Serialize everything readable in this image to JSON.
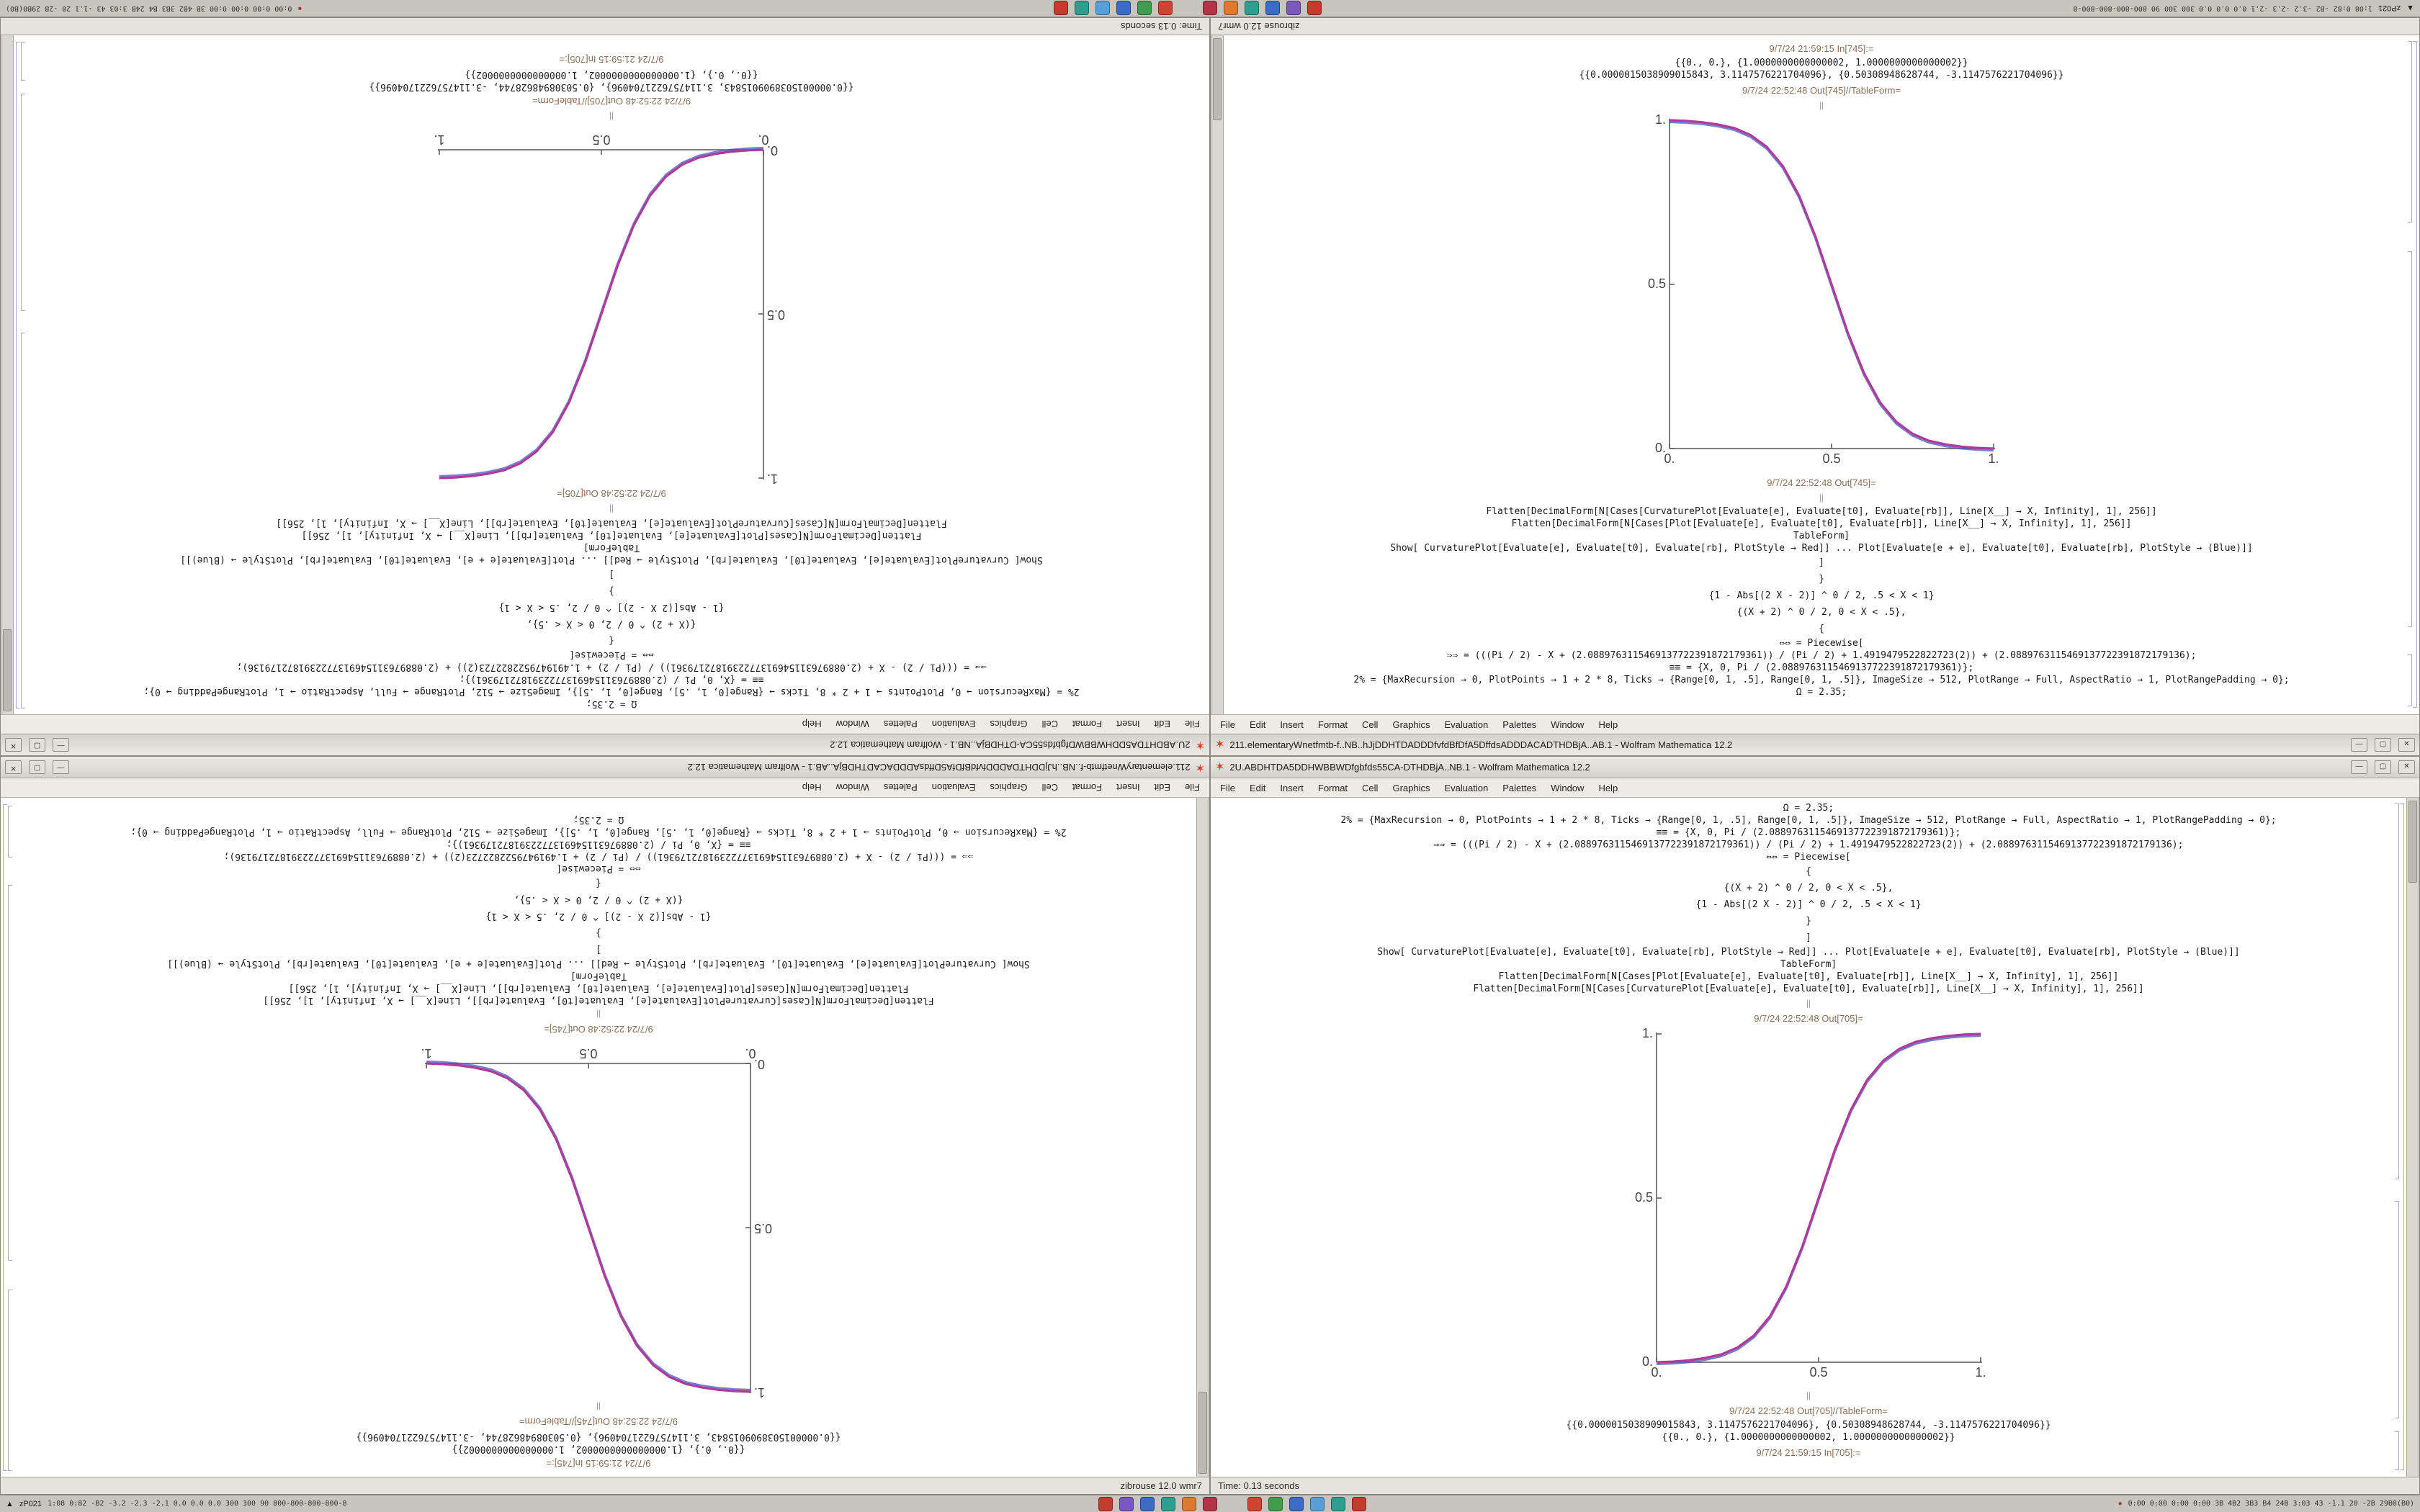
{
  "menu": [
    "File",
    "Edit",
    "Insert",
    "Format",
    "Cell",
    "Graphics",
    "Evaluation",
    "Palettes",
    "Window",
    "Help"
  ],
  "taskbar": {
    "expand_icon": "▲",
    "left_label": "zP021",
    "left_stats": "1:08 0:82 -B2 -3.2 -2.3 -2.1 0.0 0.0 0.0 300 300 90 800-800-800-800-8",
    "apps_left": [
      {
        "name": "app-icon-red",
        "color": "#c43b2e"
      },
      {
        "name": "app-icon-violet",
        "color": "#7a58c0"
      },
      {
        "name": "app-icon-blue",
        "color": "#3b6cc4"
      },
      {
        "name": "app-icon-teal",
        "color": "#2e9e8f"
      },
      {
        "name": "app-icon-orange",
        "color": "#e0782e"
      },
      {
        "name": "app-icon-crimson",
        "color": "#b23545"
      }
    ],
    "apps_right": [
      {
        "name": "app-icon-scarlet",
        "color": "#d04330"
      },
      {
        "name": "app-icon-green",
        "color": "#3f9d4e"
      },
      {
        "name": "app-icon-navy",
        "color": "#3b6cc4"
      },
      {
        "name": "app-icon-lightblue",
        "color": "#5aa0d8"
      },
      {
        "name": "app-icon-cyan",
        "color": "#2e9e8f"
      },
      {
        "name": "app-icon-rust",
        "color": "#c43b2e"
      }
    ],
    "tray_icon": "●",
    "right_stats": "0:00 0:00 0:00 0:00 3B 4B2 3B3 B4 24B 3:03 43 -1.1 20 -2B 29B0(B0)"
  },
  "notebook_a": {
    "title": "2U.ABDHTDA5DDHWBBWDfgbfds55CA-DTHDBjA..NB.1 - Wolfram Mathematica 12.2",
    "buttons": {
      "minimize": "—",
      "maximize": "▢",
      "close": "✕"
    },
    "status": "Time: 0.13 seconds",
    "rows": [
      {
        "type": "code",
        "text": "Ω = 2.35;"
      },
      {
        "type": "code",
        "text": "2% = {MaxRecursion → 0, PlotPoints → 1 + 2 * 8, Ticks → {Range[0, 1, .5], Range[0, 1, .5]}, ImageSize → 512, PlotRange → Full, AspectRatio → 1, PlotRangePadding → 0};"
      },
      {
        "type": "code",
        "text": "≡≡ = {X, 0, Pi / (2.0889763115469137722391872179361)};"
      },
      {
        "type": "code",
        "text": "⇒⇒ = (((Pi / 2) - X + (2.0889763115469137722391872179361)) / (Pi / 2) + 1.4919479522822723(2)) + (2.0889763115469137722391872179136);"
      },
      {
        "type": "code",
        "text": "⇔⇔ = Piecewise["
      },
      {
        "type": "piece",
        "text": "{"
      },
      {
        "type": "piece",
        "text": "{(X + 2) ^ 0 / 2, 0 < X < .5},"
      },
      {
        "type": "piece",
        "text": "{1 - Abs[(2 X - 2)] ^ 0 / 2, .5 < X < 1}"
      },
      {
        "type": "piece",
        "text": "}"
      },
      {
        "type": "piece",
        "text": "]"
      },
      {
        "type": "code",
        "text": "Show[ CurvaturePlot[Evaluate[e], Evaluate[t0], Evaluate[rb], PlotStyle → Red]] ...  Plot[Evaluate[e + e], Evaluate[t0], Evaluate[rb], PlotStyle → (Blue)]]"
      },
      {
        "type": "code",
        "text": "TableForm]"
      },
      {
        "type": "code",
        "text": "Flatten[DecimalForm[N[Cases[Plot[Evaluate[e], Evaluate[t0], Evaluate[rb]], Line[X__] → X, Infinity], 1], 256]]"
      },
      {
        "type": "code",
        "text": "Flatten[DecimalForm[N[Cases[CurvaturePlot[Evaluate[e], Evaluate[t0], Evaluate[rb]], Line[X__] → X, Infinity], 1], 256]]"
      },
      {
        "type": "sep",
        "text": "||"
      },
      {
        "type": "label",
        "text": "9/7/24 22:52:48 Out[705]="
      },
      {
        "type": "plot",
        "chart": "notebook_a.chart"
      },
      {
        "type": "sep",
        "text": "||"
      },
      {
        "type": "label",
        "text": "9/7/24 22:52:48 Out[705]//TableForm="
      },
      {
        "type": "num",
        "text": "{{0.0000015038909015843, 3.1147576221704096}, {0.50308948628744, -3.1147576221704096}}"
      },
      {
        "type": "num",
        "text": "{{0., 0.}, {1.0000000000000002, 1.0000000000000002}}"
      },
      {
        "type": "label",
        "text": "9/7/24 21:59:15 In[705]:="
      }
    ],
    "chart": {
      "type": "line",
      "x_ticks": [
        "0.",
        "0.5",
        "1."
      ],
      "y_ticks": [
        "0.",
        "0.5",
        "1."
      ],
      "xlim": [
        0,
        1
      ],
      "ylim": [
        0,
        1
      ],
      "curve_colors": [
        "#b03a9a",
        "#4a55c0"
      ],
      "points_x": [
        0,
        0.05,
        0.1,
        0.15,
        0.2,
        0.25,
        0.3,
        0.35,
        0.4,
        0.45,
        0.5,
        0.55,
        0.6,
        0.65,
        0.7,
        0.75,
        0.8,
        0.85,
        0.9,
        0.95,
        1
      ],
      "points_y": [
        0,
        0.002,
        0.006,
        0.013,
        0.024,
        0.045,
        0.081,
        0.14,
        0.23,
        0.353,
        0.5,
        0.647,
        0.77,
        0.86,
        0.919,
        0.955,
        0.976,
        0.987,
        0.994,
        0.998,
        1
      ]
    }
  },
  "notebook_b": {
    "title": "211.elementaryWnetfmtb-f..NB..hJjDDHTDADDDfvfdBfDfA5DffdsADDDACADTHDBjA..AB.1 - Wolfram Mathematica 12.2",
    "buttons": {
      "minimize": "—",
      "maximize": "▢",
      "close": "✕"
    },
    "status": "zibrouse 12.0 wmr7",
    "rows": [
      {
        "type": "label",
        "text": "9/7/24 21:59:15 In[745]:="
      },
      {
        "type": "num",
        "text": "{{0., 0.}, {1.0000000000000002, 1.0000000000000002}}"
      },
      {
        "type": "num",
        "text": "{{0.0000015038909015843, 3.1147576221704096}, {0.50308948628744, -3.1147576221704096}}"
      },
      {
        "type": "label",
        "text": "9/7/24 22:52:48 Out[745]//TableForm="
      },
      {
        "type": "sep",
        "text": "||"
      },
      {
        "type": "plot",
        "chart": "notebook_b.chart"
      },
      {
        "type": "label",
        "text": "9/7/24 22:52:48 Out[745]="
      },
      {
        "type": "sep",
        "text": "||"
      },
      {
        "type": "code",
        "text": "Flatten[DecimalForm[N[Cases[CurvaturePlot[Evaluate[e], Evaluate[t0], Evaluate[rb]], Line[X__] → X, Infinity], 1], 256]]"
      },
      {
        "type": "code",
        "text": "Flatten[DecimalForm[N[Cases[Plot[Evaluate[e], Evaluate[t0], Evaluate[rb]], Line[X__] → X, Infinity], 1], 256]]"
      },
      {
        "type": "code",
        "text": "TableForm]"
      },
      {
        "type": "code",
        "text": "Show[ CurvaturePlot[Evaluate[e], Evaluate[t0], Evaluate[rb], PlotStyle → Red]] ...  Plot[Evaluate[e + e], Evaluate[t0], Evaluate[rb], PlotStyle → (Blue)]]"
      },
      {
        "type": "piece",
        "text": "]"
      },
      {
        "type": "piece",
        "text": "}"
      },
      {
        "type": "piece",
        "text": "{1 - Abs[(2 X - 2)] ^ 0 / 2, .5 < X < 1}"
      },
      {
        "type": "piece",
        "text": "{(X + 2) ^ 0 / 2, 0 < X < .5},"
      },
      {
        "type": "piece",
        "text": "{"
      },
      {
        "type": "code",
        "text": "⇔⇔ = Piecewise["
      },
      {
        "type": "code",
        "text": "⇒⇒ = (((Pi / 2) - X + (2.0889763115469137722391872179361)) / (Pi / 2) + 1.4919479522822723(2)) + (2.0889763115469137722391872179136);"
      },
      {
        "type": "code",
        "text": "≡≡ = {X, 0, Pi / (2.0889763115469137722391872179361)};"
      },
      {
        "type": "code",
        "text": "2% = {MaxRecursion → 0, PlotPoints → 1 + 2 * 8, Ticks → {Range[0, 1, .5], Range[0, 1, .5]}, ImageSize → 512, PlotRange → Full, AspectRatio → 1, PlotRangePadding → 0};"
      },
      {
        "type": "code",
        "text": "Ω = 2.35;"
      }
    ],
    "chart": {
      "type": "line",
      "x_ticks": [
        "0.",
        "0.5",
        "1."
      ],
      "y_ticks": [
        "0.",
        "0.5",
        "1."
      ],
      "xlim": [
        0,
        1
      ],
      "ylim": [
        0,
        1
      ],
      "curve_colors": [
        "#b03a9a",
        "#4a55c0"
      ],
      "points_x": [
        0,
        0.05,
        0.1,
        0.15,
        0.2,
        0.25,
        0.3,
        0.35,
        0.4,
        0.45,
        0.5,
        0.55,
        0.6,
        0.65,
        0.7,
        0.75,
        0.8,
        0.85,
        0.9,
        0.95,
        1
      ],
      "points_y": [
        1,
        0.998,
        0.994,
        0.987,
        0.976,
        0.955,
        0.919,
        0.86,
        0.77,
        0.647,
        0.5,
        0.353,
        0.23,
        0.14,
        0.081,
        0.045,
        0.024,
        0.013,
        0.006,
        0.002,
        0
      ]
    }
  }
}
